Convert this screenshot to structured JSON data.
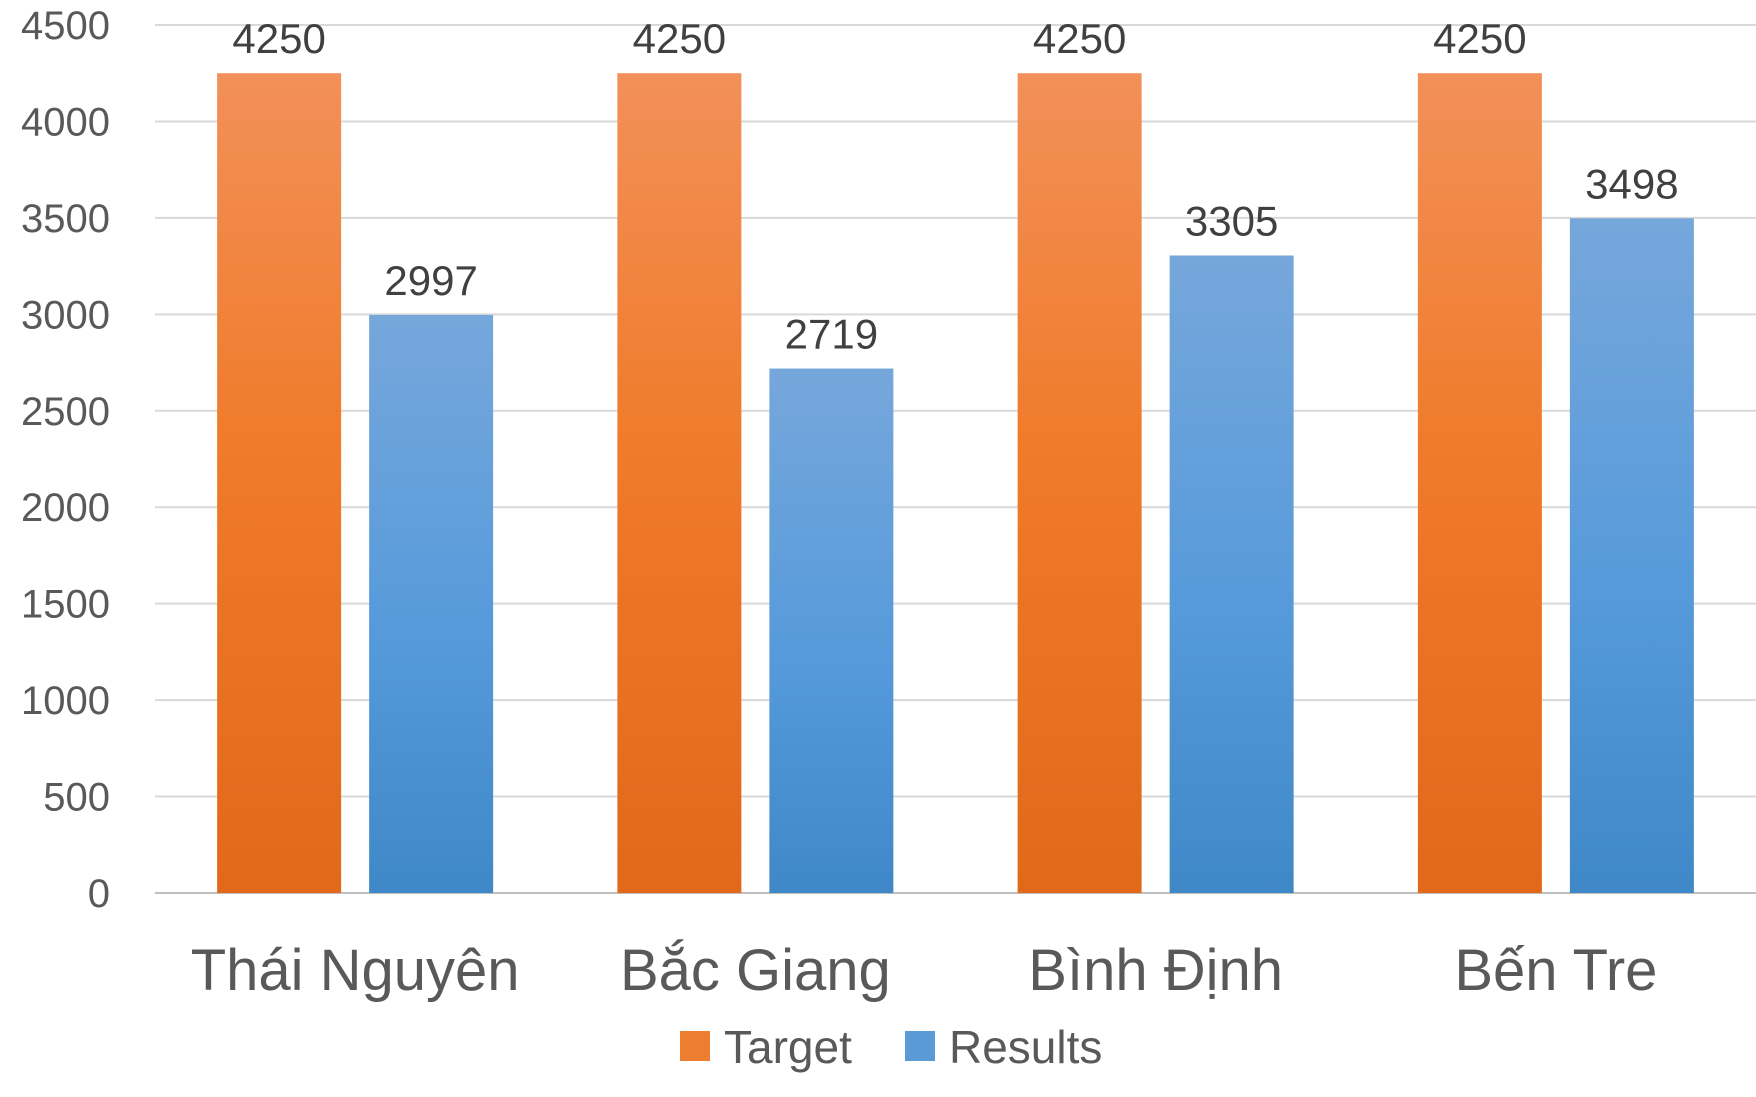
{
  "chart_data": {
    "type": "bar",
    "categories": [
      "Thái Nguyên",
      "Bắc Giang",
      "Bình Định",
      "Bến Tre"
    ],
    "series": [
      {
        "name": "Target",
        "values": [
          4250,
          4250,
          4250,
          4250
        ],
        "color": "#ED7D31"
      },
      {
        "name": "Results",
        "values": [
          2997,
          2719,
          3305,
          3498
        ],
        "color": "#5B9BD5"
      }
    ],
    "ylim": [
      0,
      4500
    ],
    "yticks": [
      0,
      500,
      1000,
      1500,
      2000,
      2500,
      3000,
      3500,
      4000,
      4500
    ],
    "grid": true,
    "legend_position": "bottom",
    "data_labels": true
  }
}
